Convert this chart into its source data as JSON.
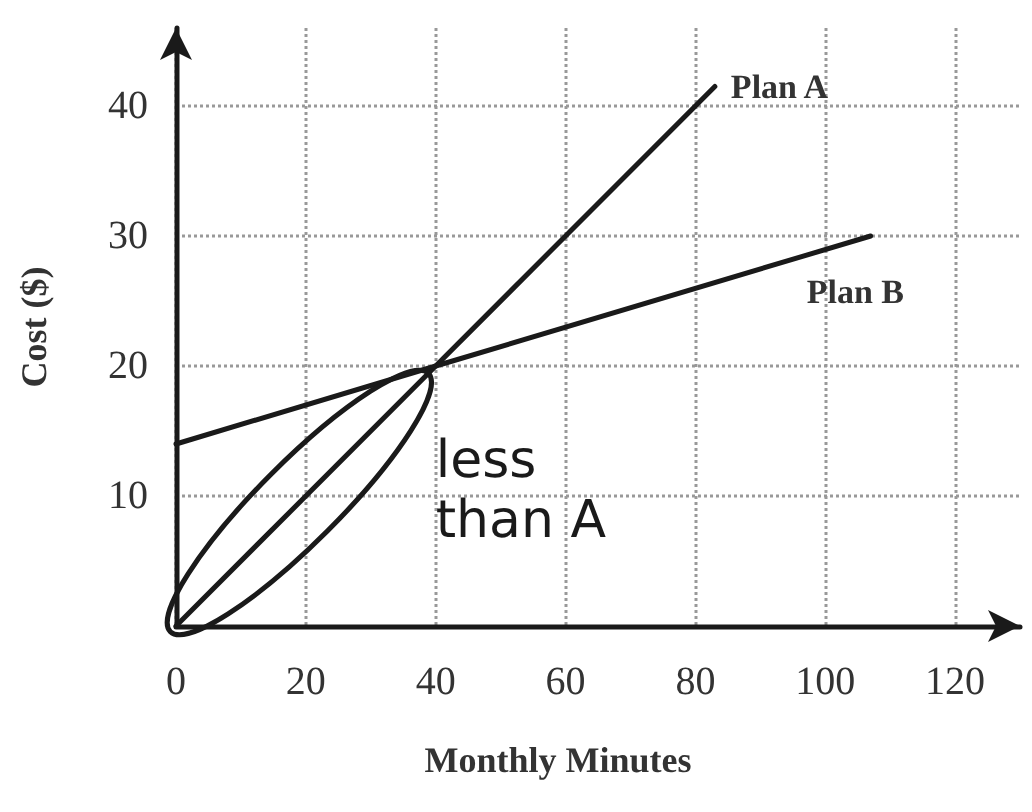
{
  "chart_data": {
    "type": "line",
    "xlabel": "Monthly Minutes",
    "ylabel": "Cost ($)",
    "series": [
      {
        "name": "Plan A",
        "color": "#1a1a1a",
        "x": [
          0,
          40,
          83
        ],
        "values": [
          0,
          20,
          41.5
        ]
      },
      {
        "name": "Plan B",
        "color": "#1a1a1a",
        "x": [
          0,
          40,
          107
        ],
        "values": [
          14,
          20,
          30
        ]
      }
    ],
    "annotations": [
      "less than A"
    ],
    "xlim": [
      0,
      130
    ],
    "ylim": [
      0,
      46
    ],
    "xticks": [
      0,
      20,
      40,
      60,
      80,
      100,
      120
    ],
    "yticks": [
      10,
      20,
      30,
      40
    ],
    "grid": true,
    "line_style": "solid",
    "marker": "none",
    "legend": false
  }
}
